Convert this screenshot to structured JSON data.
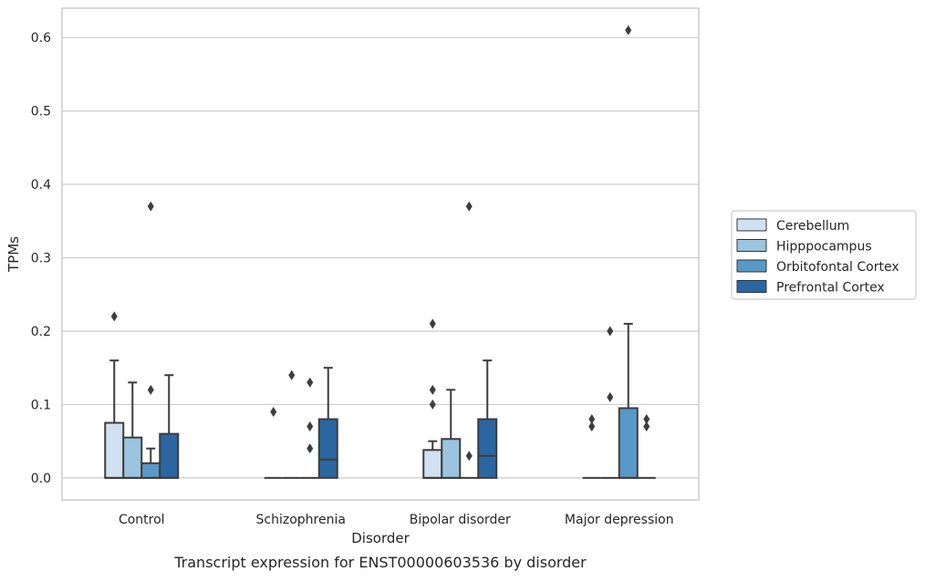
{
  "chart_data": {
    "type": "boxplot",
    "title": "",
    "caption": "Transcript expression for ENST00000603536 by disorder",
    "xlabel": "Disorder",
    "ylabel": "TPMs",
    "ylim": [
      -0.03,
      0.64
    ],
    "yticks": [
      "0.0",
      "0.1",
      "0.2",
      "0.3",
      "0.4",
      "0.5",
      "0.6"
    ],
    "grid": "horizontal",
    "legend_position": "right",
    "categories": [
      "Control",
      "Schizophrenia",
      "Bipolar disorder",
      "Major depression"
    ],
    "series": [
      {
        "name": "Cerebellum",
        "color": "#d0e1f2",
        "boxes": [
          {
            "q1": 0.0,
            "median": 0.0,
            "q3": 0.075,
            "whislo": 0.0,
            "whishi": 0.16,
            "fliers": [
              0.22
            ]
          },
          {
            "q1": 0.0,
            "median": 0.0,
            "q3": 0.0,
            "whislo": 0.0,
            "whishi": 0.0,
            "fliers": [
              0.09
            ]
          },
          {
            "q1": 0.0,
            "median": 0.0,
            "q3": 0.038,
            "whislo": 0.0,
            "whishi": 0.05,
            "fliers": [
              0.1,
              0.12,
              0.21
            ]
          },
          {
            "q1": 0.0,
            "median": 0.0,
            "q3": 0.0,
            "whislo": 0.0,
            "whishi": 0.0,
            "fliers": [
              0.07,
              0.08
            ]
          }
        ]
      },
      {
        "name": "Hipppocampus",
        "color": "#9ac4e0",
        "boxes": [
          {
            "q1": 0.0,
            "median": 0.0,
            "q3": 0.055,
            "whislo": 0.0,
            "whishi": 0.13,
            "fliers": []
          },
          {
            "q1": 0.0,
            "median": 0.0,
            "q3": 0.0,
            "whislo": 0.0,
            "whishi": 0.0,
            "fliers": [
              0.14
            ]
          },
          {
            "q1": 0.0,
            "median": 0.0,
            "q3": 0.053,
            "whislo": 0.0,
            "whishi": 0.12,
            "fliers": []
          },
          {
            "q1": 0.0,
            "median": 0.0,
            "q3": 0.0,
            "whislo": 0.0,
            "whishi": 0.0,
            "fliers": [
              0.11,
              0.2
            ]
          }
        ]
      },
      {
        "name": "Orbitofontal Cortex",
        "color": "#5899c8",
        "boxes": [
          {
            "q1": 0.0,
            "median": 0.0,
            "q3": 0.02,
            "whislo": 0.0,
            "whishi": 0.04,
            "fliers": [
              0.12,
              0.37
            ]
          },
          {
            "q1": 0.0,
            "median": 0.0,
            "q3": 0.0,
            "whislo": 0.0,
            "whishi": 0.0,
            "fliers": [
              0.04,
              0.07,
              0.13
            ]
          },
          {
            "q1": 0.0,
            "median": 0.0,
            "q3": 0.0,
            "whislo": 0.0,
            "whishi": 0.0,
            "fliers": [
              0.03,
              0.37
            ]
          },
          {
            "q1": 0.0,
            "median": 0.0,
            "q3": 0.095,
            "whislo": 0.0,
            "whishi": 0.21,
            "fliers": [
              0.61
            ]
          }
        ]
      },
      {
        "name": "Prefrontal Cortex",
        "color": "#2a66a2",
        "boxes": [
          {
            "q1": 0.0,
            "median": 0.0,
            "q3": 0.06,
            "whislo": 0.0,
            "whishi": 0.14,
            "fliers": []
          },
          {
            "q1": 0.0,
            "median": 0.025,
            "q3": 0.08,
            "whislo": 0.0,
            "whishi": 0.15,
            "fliers": []
          },
          {
            "q1": 0.0,
            "median": 0.03,
            "q3": 0.08,
            "whislo": 0.0,
            "whishi": 0.16,
            "fliers": []
          },
          {
            "q1": 0.0,
            "median": 0.0,
            "q3": 0.0,
            "whislo": 0.0,
            "whishi": 0.0,
            "fliers": [
              0.07,
              0.08
            ]
          }
        ]
      }
    ]
  }
}
